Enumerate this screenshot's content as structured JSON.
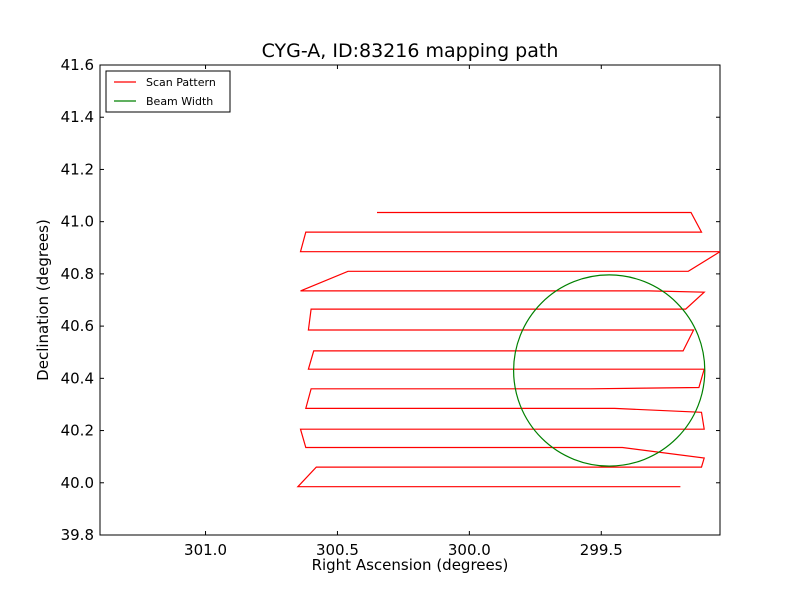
{
  "chart_data": {
    "type": "line",
    "title": "CYG-A, ID:83216 mapping path",
    "xlabel": "Right Ascension (degrees)",
    "ylabel": "Declination (degrees)",
    "xlim": [
      301.4,
      299.05
    ],
    "ylim": [
      39.8,
      41.6
    ],
    "x_inverted": true,
    "xticks": [
      {
        "value": 301.0,
        "label": "301.0"
      },
      {
        "value": 300.5,
        "label": "300.5"
      },
      {
        "value": 300.0,
        "label": "300.0"
      },
      {
        "value": 299.5,
        "label": "299.5"
      }
    ],
    "yticks": [
      {
        "value": 39.8,
        "label": "39.8"
      },
      {
        "value": 40.0,
        "label": "40.0"
      },
      {
        "value": 40.2,
        "label": "40.2"
      },
      {
        "value": 40.4,
        "label": "40.4"
      },
      {
        "value": 40.6,
        "label": "40.6"
      },
      {
        "value": 40.8,
        "label": "40.8"
      },
      {
        "value": 41.0,
        "label": "41.0"
      },
      {
        "value": 41.2,
        "label": "41.2"
      },
      {
        "value": 41.4,
        "label": "41.4"
      },
      {
        "value": 41.6,
        "label": "41.6"
      }
    ],
    "grid": false,
    "legend_position": "top-left",
    "series": [
      {
        "name": "Scan Pattern",
        "color": "#ff0000",
        "x": [
          299.2,
          299.48,
          299.52,
          299.58,
          299.9,
          300.3,
          300.45,
          300.57,
          300.65,
          300.58,
          300.48,
          300.02,
          299.65,
          299.52,
          299.48,
          299.12,
          299.11,
          299.42,
          300.09,
          300.4,
          300.57,
          300.62,
          300.64,
          300.52,
          300.48,
          300.08,
          299.55,
          299.33,
          299.11,
          299.12,
          299.45,
          300.13,
          300.38,
          300.49,
          300.62,
          300.6,
          300.48,
          300.32,
          300.08,
          299.79,
          299.54,
          299.13,
          299.11,
          299.3,
          299.56,
          300.13,
          300.37,
          300.49,
          300.61,
          300.59,
          300.51,
          300.34,
          300.06,
          299.76,
          299.44,
          299.19,
          299.15,
          299.35,
          299.79,
          300.2,
          300.48,
          300.61,
          300.6,
          300.48,
          300.25,
          300.07,
          299.75,
          299.45,
          299.18,
          299.11,
          299.32,
          299.69,
          300.07,
          300.38,
          300.63,
          300.64,
          300.46,
          300.29,
          300.13,
          299.82,
          299.53,
          299.17,
          299.05,
          299.24,
          299.67,
          300.0,
          300.34,
          300.5,
          300.64,
          300.62,
          300.45,
          300.19,
          299.74,
          299.46,
          299.12,
          299.16,
          299.31,
          299.76,
          300.0,
          300.35
        ],
        "y": [
          39.985,
          39.985,
          39.985,
          39.985,
          39.985,
          39.985,
          39.985,
          39.985,
          39.985,
          40.06,
          40.06,
          40.06,
          40.06,
          40.06,
          40.06,
          40.06,
          40.095,
          40.135,
          40.135,
          40.135,
          40.135,
          40.135,
          40.205,
          40.205,
          40.205,
          40.205,
          40.205,
          40.205,
          40.205,
          40.27,
          40.285,
          40.285,
          40.285,
          40.285,
          40.285,
          40.36,
          40.36,
          40.36,
          40.36,
          40.36,
          40.36,
          40.365,
          40.435,
          40.435,
          40.435,
          40.435,
          40.435,
          40.435,
          40.435,
          40.505,
          40.505,
          40.505,
          40.505,
          40.505,
          40.505,
          40.505,
          40.585,
          40.585,
          40.585,
          40.585,
          40.585,
          40.585,
          40.665,
          40.665,
          40.665,
          40.665,
          40.665,
          40.665,
          40.665,
          40.73,
          40.735,
          40.735,
          40.735,
          40.735,
          40.735,
          40.735,
          40.81,
          40.81,
          40.81,
          40.81,
          40.81,
          40.81,
          40.885,
          40.885,
          40.885,
          40.885,
          40.885,
          40.885,
          40.885,
          40.96,
          40.96,
          40.96,
          40.96,
          40.96,
          40.96,
          41.035,
          41.035,
          41.035,
          41.035,
          41.035
        ]
      },
      {
        "name": "Beam Width",
        "color": "#008000",
        "circle": {
          "center_ra": 299.47,
          "center_dec": 40.43,
          "radius_deg": 0.366
        }
      }
    ]
  }
}
